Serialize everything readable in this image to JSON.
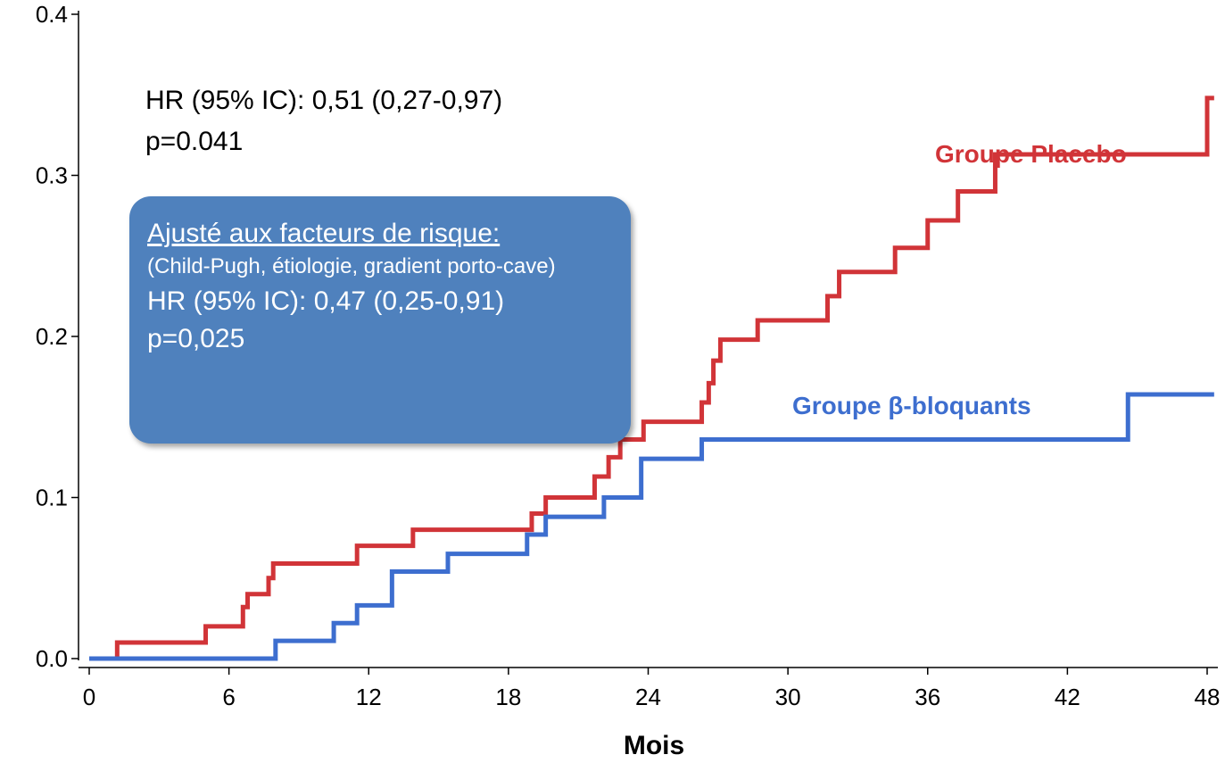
{
  "chart_data": {
    "type": "line",
    "xlabel": "Mois",
    "ylabel": "",
    "xlim": [
      0,
      48
    ],
    "ylim": [
      0,
      0.4
    ],
    "x_ticks": [
      "0",
      "6",
      "12",
      "18",
      "24",
      "30",
      "36",
      "42",
      "48"
    ],
    "y_ticks": [
      "0.0",
      "0.1",
      "0.2",
      "0.3",
      "0.4"
    ],
    "grid": false,
    "series": [
      {
        "name": "Groupe Placebo",
        "color": "#d13438",
        "step": true,
        "x": [
          0,
          1.2,
          5,
          6.6,
          6.8,
          7.7,
          7.9,
          11.5,
          13.9,
          19,
          19.6,
          21.7,
          22.3,
          22.8,
          23.8,
          26.3,
          26.6,
          26.8,
          27.1,
          27.3,
          28.7,
          31.7,
          32.2,
          34.6,
          36,
          37.3,
          38.9,
          48.0,
          48.3
        ],
        "y": [
          0,
          0.01,
          0.02,
          0.032,
          0.04,
          0.05,
          0.059,
          0.07,
          0.08,
          0.09,
          0.1,
          0.113,
          0.125,
          0.136,
          0.147,
          0.159,
          0.171,
          0.185,
          0.198,
          0.198,
          0.21,
          0.225,
          0.24,
          0.255,
          0.272,
          0.29,
          0.313,
          0.348,
          0.348
        ]
      },
      {
        "name": "Groupe β-bloquants",
        "color": "#3d6ecf",
        "step": true,
        "x": [
          0,
          8,
          10.5,
          11.5,
          13,
          15.4,
          18.8,
          19.6,
          22.1,
          23.7,
          26.3,
          44.6,
          48.3
        ],
        "y": [
          0,
          0.011,
          0.022,
          0.033,
          0.054,
          0.065,
          0.077,
          0.088,
          0.1,
          0.124,
          0.136,
          0.164,
          0.164
        ]
      }
    ],
    "annotations": {
      "main_hr": "HR (95% IC): 0,51 (0,27-0,97)",
      "main_p": "p=0.041",
      "box_title": "Ajusté aux facteurs de risque:",
      "box_sub": "(Child-Pugh, étiologie, gradient porto-cave)",
      "box_hr": "HR (95% IC): 0,47 (0,25-0,91)",
      "box_p": "p=0,025"
    }
  }
}
